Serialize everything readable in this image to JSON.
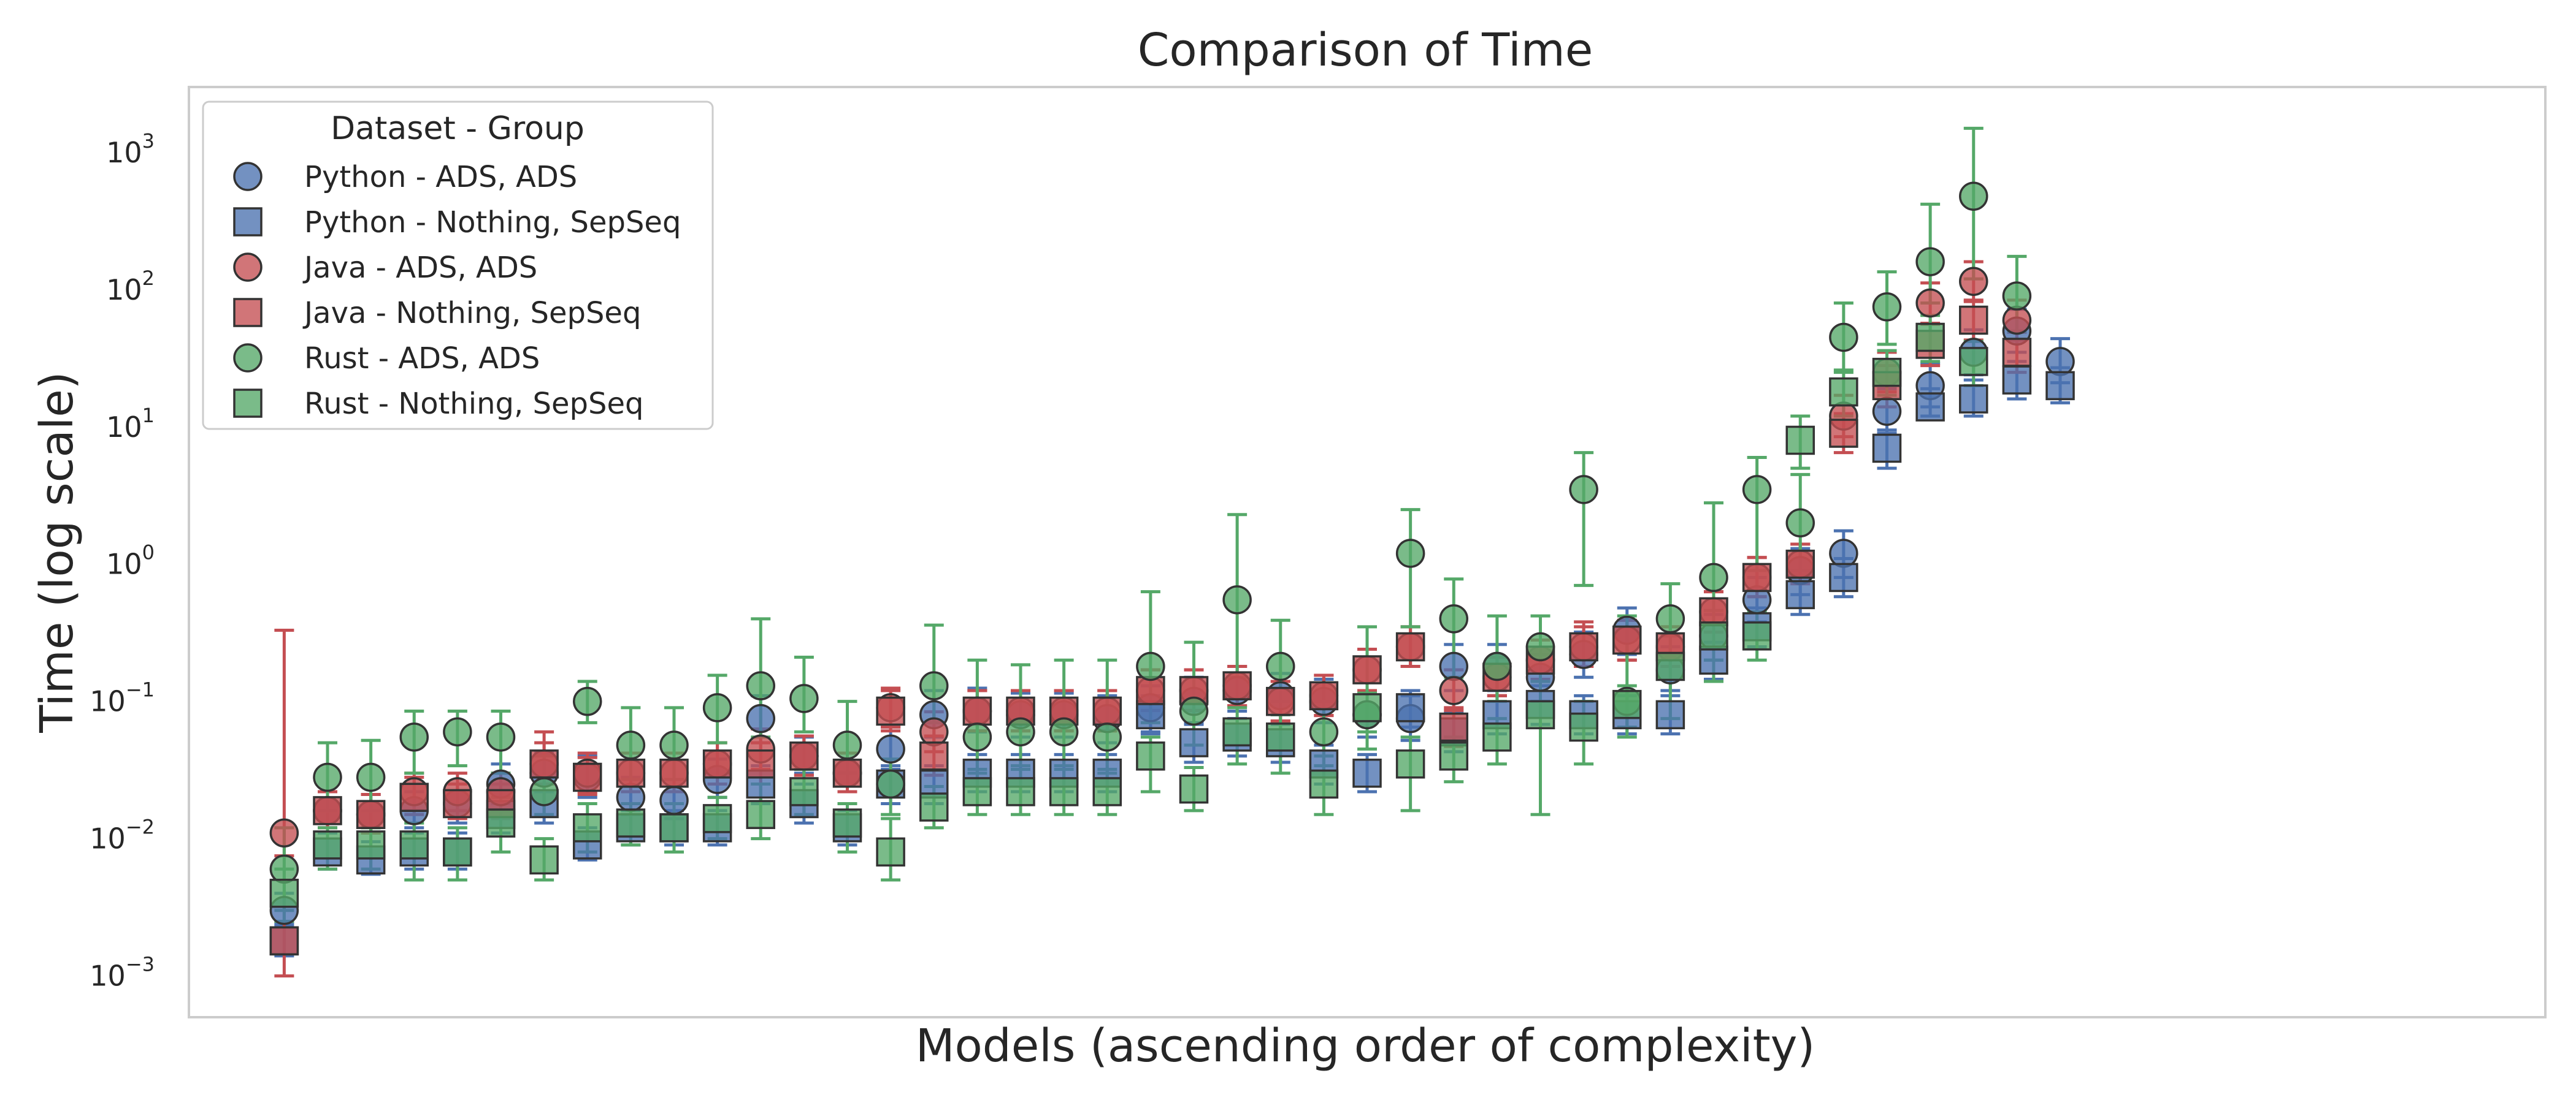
{
  "chart_data": {
    "type": "scatter",
    "title": "Comparison of Time",
    "xlabel": "Models (ascending order of complexity)",
    "ylabel": "Time (log scale)",
    "yscale": "log",
    "ylim": [
      0.0005,
      3000
    ],
    "xlim": [
      -2.2,
      52.2
    ],
    "y_ticks": [
      {
        "base": "10",
        "exp": "−3",
        "value": 0.001
      },
      {
        "base": "10",
        "exp": "−2",
        "value": 0.01
      },
      {
        "base": "10",
        "exp": "−1",
        "value": 0.1
      },
      {
        "base": "10",
        "exp": "0",
        "value": 1
      },
      {
        "base": "10",
        "exp": "1",
        "value": 10
      },
      {
        "base": "10",
        "exp": "2",
        "value": 100
      },
      {
        "base": "10",
        "exp": "3",
        "value": 1000
      }
    ],
    "x_ticks_shown": false,
    "grid": false,
    "legend": {
      "title": "Dataset - Group",
      "position": "top-left"
    },
    "error_bars": "min-max",
    "series": [
      {
        "name": "Python - ADS, ADS",
        "marker": "circle",
        "color": "#4c72b0",
        "values": [
          0.003,
          0.016,
          0.015,
          0.016,
          0.018,
          0.025,
          0.03,
          0.028,
          0.02,
          0.019,
          0.027,
          0.075,
          0.04,
          0.03,
          0.045,
          0.08,
          0.085,
          0.08,
          0.08,
          0.075,
          0.09,
          0.1,
          0.12,
          0.11,
          0.1,
          0.08,
          0.075,
          0.18,
          0.18,
          0.15,
          0.22,
          0.33,
          0.17,
          0.3,
          0.55,
          0.9,
          1.2,
          13,
          20,
          35,
          50,
          30
        ],
        "err_low": [
          0.0023,
          0.012,
          0.011,
          0.012,
          0.013,
          0.018,
          0.022,
          0.02,
          0.015,
          0.014,
          0.02,
          0.05,
          0.03,
          0.022,
          0.032,
          0.055,
          0.06,
          0.055,
          0.055,
          0.05,
          0.06,
          0.07,
          0.085,
          0.08,
          0.07,
          0.055,
          0.052,
          0.12,
          0.12,
          0.1,
          0.15,
          0.22,
          0.12,
          0.2,
          0.38,
          0.6,
          0.8,
          9,
          14,
          24,
          35,
          21
        ],
        "err_high": [
          0.004,
          0.022,
          0.021,
          0.022,
          0.025,
          0.035,
          0.042,
          0.04,
          0.028,
          0.027,
          0.038,
          0.11,
          0.055,
          0.042,
          0.065,
          0.12,
          0.125,
          0.115,
          0.115,
          0.11,
          0.13,
          0.15,
          0.18,
          0.16,
          0.145,
          0.12,
          0.11,
          0.26,
          0.26,
          0.22,
          0.32,
          0.48,
          0.25,
          0.43,
          0.8,
          1.3,
          1.75,
          19,
          29,
          51,
          72,
          44
        ]
      },
      {
        "name": "Python - Nothing, SepSeq",
        "marker": "square",
        "color": "#4c72b0",
        "values": [
          0.0018,
          0.008,
          0.007,
          0.008,
          0.008,
          0.015,
          0.018,
          0.009,
          0.012,
          0.012,
          0.012,
          0.025,
          0.018,
          0.012,
          0.025,
          0.025,
          0.03,
          0.03,
          0.03,
          0.03,
          0.08,
          0.05,
          0.055,
          0.05,
          0.035,
          0.03,
          0.09,
          0.06,
          0.08,
          0.095,
          0.08,
          0.08,
          0.08,
          0.2,
          0.35,
          0.6,
          0.8,
          7,
          14,
          16,
          22,
          20
        ],
        "err_low": [
          0.0014,
          0.006,
          0.0055,
          0.006,
          0.006,
          0.011,
          0.013,
          0.007,
          0.009,
          0.009,
          0.009,
          0.018,
          0.013,
          0.009,
          0.018,
          0.018,
          0.022,
          0.022,
          0.022,
          0.022,
          0.058,
          0.036,
          0.04,
          0.036,
          0.025,
          0.022,
          0.065,
          0.043,
          0.058,
          0.068,
          0.058,
          0.058,
          0.058,
          0.145,
          0.25,
          0.43,
          0.58,
          5,
          12,
          12,
          16,
          15
        ],
        "err_high": [
          0.0024,
          0.011,
          0.0095,
          0.011,
          0.011,
          0.02,
          0.025,
          0.012,
          0.016,
          0.016,
          0.016,
          0.034,
          0.025,
          0.016,
          0.034,
          0.034,
          0.041,
          0.041,
          0.041,
          0.041,
          0.11,
          0.068,
          0.075,
          0.068,
          0.048,
          0.041,
          0.12,
          0.082,
          0.11,
          0.13,
          0.11,
          0.11,
          0.11,
          0.27,
          0.48,
          0.82,
          1.1,
          9.5,
          19,
          22,
          30,
          27
        ]
      },
      {
        "name": "Java - ADS, ADS",
        "marker": "circle",
        "color": "#c44e52",
        "values": [
          0.011,
          0.016,
          0.015,
          0.022,
          0.022,
          0.022,
          0.035,
          0.03,
          0.03,
          0.03,
          0.035,
          0.045,
          0.04,
          0.03,
          0.09,
          0.06,
          0.085,
          0.085,
          0.085,
          0.085,
          0.12,
          0.12,
          0.13,
          0.1,
          0.11,
          0.17,
          0.25,
          0.12,
          0.15,
          0.2,
          0.25,
          0.28,
          0.25,
          0.45,
          0.8,
          1.0,
          12,
          25,
          80,
          115,
          60,
          null
        ],
        "err_low": [
          0.0075,
          0.012,
          0.011,
          0.016,
          0.016,
          0.016,
          0.025,
          0.022,
          0.022,
          0.022,
          0.025,
          0.032,
          0.029,
          0.022,
          0.065,
          0.043,
          0.061,
          0.061,
          0.061,
          0.061,
          0.086,
          0.086,
          0.093,
          0.072,
          0.079,
          0.12,
          0.18,
          0.086,
          0.11,
          0.145,
          0.18,
          0.2,
          0.18,
          0.32,
          0.58,
          0.72,
          8.5,
          18,
          57,
          82,
          43,
          null
        ],
        "err_high": [
          0.33,
          0.022,
          0.021,
          0.03,
          0.03,
          0.03,
          0.05,
          0.042,
          0.042,
          0.042,
          0.05,
          0.063,
          0.056,
          0.042,
          0.125,
          0.084,
          0.12,
          0.12,
          0.12,
          0.12,
          0.17,
          0.17,
          0.18,
          0.14,
          0.155,
          0.24,
          0.35,
          0.17,
          0.21,
          0.28,
          0.35,
          0.39,
          0.35,
          0.63,
          1.12,
          1.4,
          17,
          35,
          112,
          160,
          84,
          null
        ]
      },
      {
        "name": "Java - Nothing, SepSeq",
        "marker": "square",
        "color": "#c44e52",
        "values": [
          0.0018,
          0.016,
          0.015,
          0.02,
          0.018,
          0.018,
          0.035,
          0.028,
          0.03,
          0.03,
          0.035,
          0.035,
          0.04,
          0.03,
          0.085,
          0.04,
          0.085,
          0.085,
          0.085,
          0.085,
          0.12,
          0.12,
          0.13,
          0.1,
          0.11,
          0.17,
          0.25,
          0.065,
          0.15,
          0.2,
          0.25,
          0.28,
          0.25,
          0.45,
          0.8,
          1.0,
          9,
          20,
          40,
          60,
          35,
          null
        ],
        "err_low": [
          0.001,
          0.012,
          0.011,
          0.015,
          0.014,
          0.014,
          0.025,
          0.021,
          0.022,
          0.022,
          0.025,
          0.025,
          0.029,
          0.022,
          0.061,
          0.029,
          0.061,
          0.061,
          0.061,
          0.061,
          0.086,
          0.086,
          0.093,
          0.072,
          0.079,
          0.12,
          0.18,
          0.047,
          0.11,
          0.145,
          0.18,
          0.2,
          0.18,
          0.32,
          0.58,
          0.72,
          6.5,
          14,
          28,
          43,
          25,
          null
        ],
        "err_high": [
          0.0025,
          0.022,
          0.021,
          0.028,
          0.025,
          0.025,
          0.06,
          0.039,
          0.042,
          0.042,
          0.05,
          0.05,
          0.056,
          0.042,
          0.12,
          0.056,
          0.12,
          0.12,
          0.12,
          0.12,
          0.17,
          0.17,
          0.18,
          0.14,
          0.155,
          0.24,
          0.35,
          0.09,
          0.21,
          0.28,
          0.38,
          0.39,
          0.35,
          0.63,
          1.12,
          1.4,
          12.5,
          28,
          56,
          84,
          49,
          null
        ]
      },
      {
        "name": "Rust - ADS, ADS",
        "marker": "circle",
        "color": "#55a868",
        "values": [
          0.006,
          0.028,
          0.028,
          0.055,
          0.06,
          0.055,
          0.022,
          0.1,
          0.048,
          0.048,
          0.09,
          0.13,
          0.105,
          0.048,
          0.025,
          0.13,
          0.055,
          0.06,
          0.06,
          0.055,
          0.18,
          0.085,
          0.55,
          0.18,
          0.06,
          0.08,
          1.2,
          0.4,
          0.18,
          0.25,
          3.5,
          0.1,
          0.4,
          0.8,
          3.5,
          2.0,
          45,
          75,
          160,
          480,
          90
        ],
        "err_low": [
          0.003,
          0.016,
          0.016,
          0.03,
          0.034,
          0.03,
          0.015,
          0.07,
          0.027,
          0.027,
          0.05,
          0.055,
          0.06,
          0.03,
          0.015,
          0.07,
          0.03,
          0.034,
          0.034,
          0.03,
          0.07,
          0.048,
          0.15,
          0.1,
          0.034,
          0.045,
          0.35,
          0.15,
          0.1,
          0.14,
          0.7,
          0.055,
          0.22,
          0.2,
          0.9,
          0.9,
          25,
          40,
          80,
          120,
          50
        ],
        "err_high": [
          0.012,
          0.05,
          0.052,
          0.085,
          0.085,
          0.085,
          0.04,
          0.14,
          0.09,
          0.09,
          0.155,
          0.4,
          0.21,
          0.1,
          0.038,
          0.36,
          0.2,
          0.185,
          0.2,
          0.2,
          0.63,
          0.27,
          2.3,
          0.39,
          0.1,
          0.35,
          2.5,
          0.78,
          0.42,
          0.42,
          6.5,
          0.42,
          0.72,
          2.8,
          6.0,
          4.5,
          80,
          135,
          420,
          1500,
          175
        ]
      },
      {
        "name": "Rust - Nothing, SepSeq",
        "marker": "square",
        "color": "#55a868",
        "values": [
          0.004,
          0.009,
          0.009,
          0.009,
          0.008,
          0.013,
          0.007,
          0.012,
          0.013,
          0.012,
          0.014,
          0.015,
          0.022,
          0.013,
          0.008,
          0.017,
          0.022,
          0.022,
          0.022,
          0.022,
          0.04,
          0.023,
          0.06,
          0.055,
          0.025,
          0.09,
          0.035,
          0.04,
          0.055,
          0.08,
          0.065,
          0.095,
          0.18,
          0.3,
          0.3,
          8,
          18,
          25,
          45,
          30
        ],
        "err_low": [
          0.0025,
          0.006,
          0.006,
          0.005,
          0.005,
          0.008,
          0.005,
          0.008,
          0.009,
          0.008,
          0.01,
          0.01,
          0.015,
          0.008,
          0.005,
          0.012,
          0.015,
          0.015,
          0.015,
          0.015,
          0.022,
          0.016,
          0.035,
          0.03,
          0.015,
          0.06,
          0.016,
          0.026,
          0.035,
          0.015,
          0.035,
          0.065,
          0.075,
          0.14,
          0.2,
          5,
          12,
          17,
          30,
          20
        ],
        "err_high": [
          0.006,
          0.012,
          0.012,
          0.013,
          0.012,
          0.02,
          0.01,
          0.018,
          0.018,
          0.018,
          0.02,
          0.025,
          0.032,
          0.018,
          0.014,
          0.024,
          0.032,
          0.032,
          0.032,
          0.032,
          0.055,
          0.033,
          0.09,
          0.08,
          0.04,
          0.115,
          0.055,
          0.055,
          0.075,
          0.14,
          0.1,
          0.13,
          0.3,
          0.46,
          0.45,
          12,
          26,
          36,
          65,
          42
        ]
      }
    ]
  }
}
